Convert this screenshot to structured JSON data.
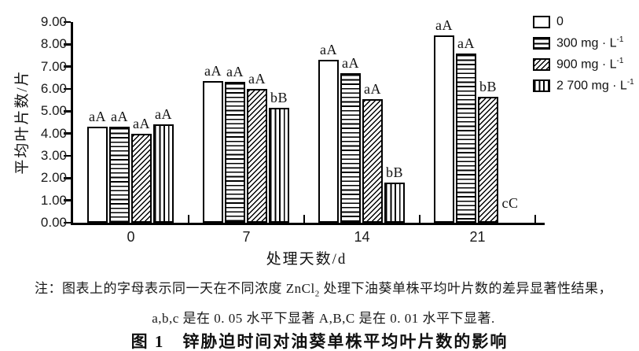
{
  "figure": {
    "note_line1_pre": "注：图表上的字母表示同一天在不同浓度 ZnCl",
    "note_line1_sub": "2",
    "note_line1_post": " 处理下油葵单株平均叶片数的差异显著性结果，",
    "note_line2": "a,b,c 是在 0. 05 水平下显著 A,B,C 是在 0. 01 水平下显著.",
    "caption": "图 1　锌胁迫时间对油葵单株平均叶片数的影响"
  },
  "chart_data": {
    "type": "bar",
    "title": "图 1 锌胁迫时间对油葵单株平均叶片数的影响",
    "xlabel": "处理天数/d",
    "ylabel": "平均叶片数/片",
    "ylim": [
      0,
      9
    ],
    "ytick_interval": 1,
    "yticks": [
      "0.00",
      "1.00",
      "2.00",
      "3.00",
      "4.00",
      "5.00",
      "6.00",
      "7.00",
      "8.00",
      "9.00"
    ],
    "grid": false,
    "legend_position": "top-right",
    "categories": [
      "0",
      "7",
      "14",
      "21"
    ],
    "series": [
      {
        "key": "0",
        "legend_main": "0",
        "legend_sup": "",
        "pattern": "plain-white",
        "values": [
          4.3,
          6.35,
          7.3,
          8.4
        ],
        "sig_labels": [
          "aA",
          "aA",
          "aA",
          "aA"
        ]
      },
      {
        "key": "300",
        "legend_main": "300 mg · L",
        "legend_sup": "-1",
        "pattern": "horizontal-stripes",
        "values": [
          4.3,
          6.3,
          6.7,
          7.6
        ],
        "sig_labels": [
          "aA",
          "aA",
          "aA",
          "aA"
        ]
      },
      {
        "key": "900",
        "legend_main": "900 mg · L",
        "legend_sup": "-1",
        "pattern": "diagonal-stripes",
        "values": [
          4.0,
          6.0,
          5.55,
          5.65
        ],
        "sig_labels": [
          "aA",
          "aA",
          "aA",
          "bB"
        ]
      },
      {
        "key": "2700",
        "legend_main": "2 700 mg · L",
        "legend_sup": "-1",
        "pattern": "vertical-stripes",
        "values": [
          4.4,
          5.15,
          1.8,
          0
        ],
        "sig_labels": [
          "aA",
          "bB",
          "bB",
          "cC"
        ]
      }
    ]
  }
}
